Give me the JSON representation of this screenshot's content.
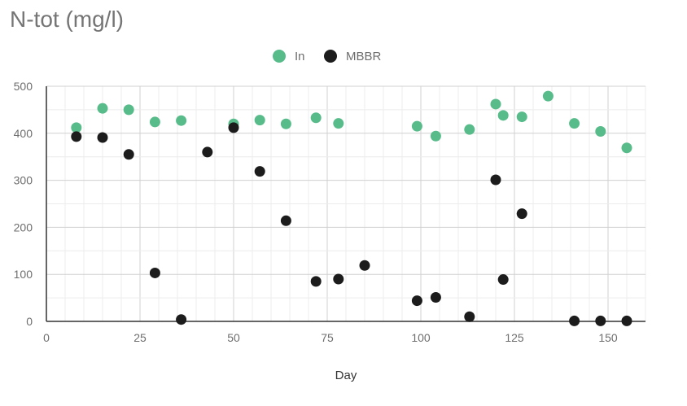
{
  "chart_data": {
    "type": "scatter",
    "title": "N-tot (mg/l)",
    "xlabel": "Day",
    "ylabel": "",
    "xlim": [
      0,
      160
    ],
    "ylim": [
      0,
      500
    ],
    "xticks": [
      0,
      25,
      50,
      75,
      100,
      125,
      150
    ],
    "yticks": [
      0,
      100,
      200,
      300,
      400,
      500
    ],
    "grid": true,
    "legend_position": "top-center",
    "series": [
      {
        "name": "In",
        "color": "#57bb8a",
        "points": [
          [
            8,
            412
          ],
          [
            15,
            453
          ],
          [
            22,
            450
          ],
          [
            29,
            424
          ],
          [
            36,
            427
          ],
          [
            50,
            420
          ],
          [
            57,
            428
          ],
          [
            64,
            420
          ],
          [
            72,
            433
          ],
          [
            78,
            421
          ],
          [
            99,
            415
          ],
          [
            104,
            394
          ],
          [
            113,
            408
          ],
          [
            120,
            462
          ],
          [
            122,
            438
          ],
          [
            127,
            435
          ],
          [
            134,
            479
          ],
          [
            141,
            421
          ],
          [
            148,
            404
          ],
          [
            155,
            369
          ]
        ]
      },
      {
        "name": "MBBR",
        "color": "#1c1c1c",
        "points": [
          [
            8,
            393
          ],
          [
            15,
            391
          ],
          [
            22,
            355
          ],
          [
            29,
            103
          ],
          [
            36,
            4
          ],
          [
            43,
            360
          ],
          [
            50,
            412
          ],
          [
            57,
            319
          ],
          [
            64,
            214
          ],
          [
            72,
            85
          ],
          [
            78,
            90
          ],
          [
            85,
            119
          ],
          [
            99,
            44
          ],
          [
            104,
            51
          ],
          [
            113,
            10
          ],
          [
            120,
            301
          ],
          [
            122,
            89
          ],
          [
            127,
            229
          ],
          [
            141,
            1
          ],
          [
            148,
            1
          ],
          [
            155,
            1
          ]
        ]
      }
    ]
  }
}
